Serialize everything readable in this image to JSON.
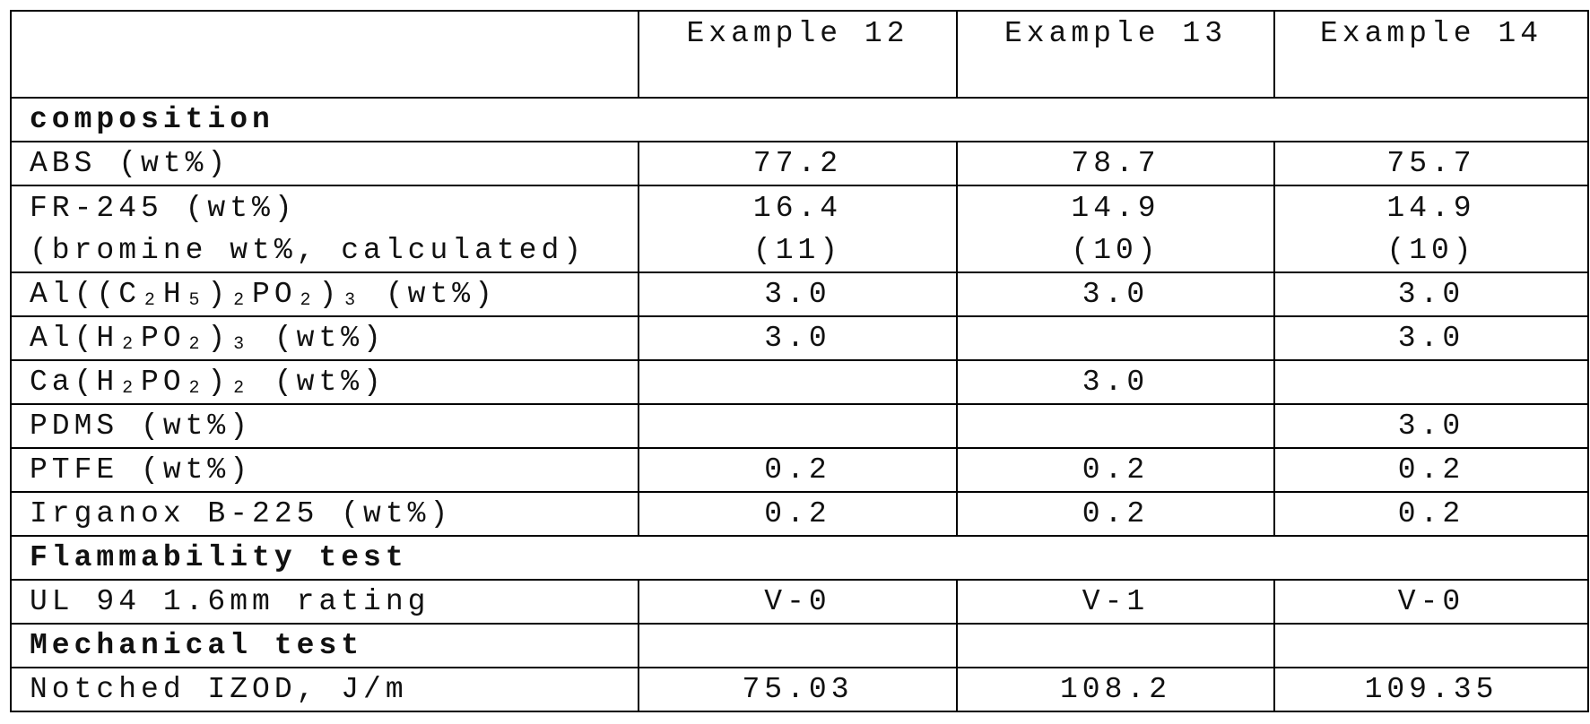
{
  "table": {
    "header": [
      "Example 12",
      "Example 13",
      "Example 14"
    ],
    "rows": [
      {
        "section": "composition"
      },
      {
        "label": [
          "ABS (wt%)"
        ],
        "cells": [
          [
            "77.2"
          ],
          [
            "78.7"
          ],
          [
            "75.7"
          ]
        ]
      },
      {
        "label": [
          "FR-245 (wt%)",
          "(bromine wt%, calculated)"
        ],
        "cells": [
          [
            "16.4",
            "(11)"
          ],
          [
            "14.9",
            "(10)"
          ],
          [
            "14.9",
            "(10)"
          ]
        ]
      },
      {
        "label": [
          "Al((C₂H₅)₂PO₂)₃ (wt%)"
        ],
        "cells": [
          [
            "3.0"
          ],
          [
            "3.0"
          ],
          [
            "3.0"
          ]
        ]
      },
      {
        "label": [
          "Al(H₂PO₂)₃ (wt%)"
        ],
        "cells": [
          [
            "3.0"
          ],
          null,
          [
            "3.0"
          ]
        ]
      },
      {
        "label": [
          "Ca(H₂PO₂)₂ (wt%)"
        ],
        "cells": [
          null,
          [
            "3.0"
          ],
          null
        ]
      },
      {
        "label": [
          "PDMS (wt%)"
        ],
        "cells": [
          null,
          null,
          [
            "3.0"
          ]
        ]
      },
      {
        "label": [
          "PTFE (wt%)"
        ],
        "cells": [
          [
            "0.2"
          ],
          [
            "0.2"
          ],
          [
            "0.2"
          ]
        ]
      },
      {
        "label": [
          "Irganox B-225 (wt%)"
        ],
        "cells": [
          [
            "0.2"
          ],
          [
            "0.2"
          ],
          [
            "0.2"
          ]
        ]
      },
      {
        "section": "Flammability test"
      },
      {
        "label": [
          "UL 94 1.6mm rating"
        ],
        "cells": [
          [
            "V-0"
          ],
          [
            "V-1"
          ],
          [
            "V-0"
          ]
        ]
      },
      {
        "section": "Mechanical test",
        "cells": [
          null,
          null,
          null
        ]
      },
      {
        "label": [
          "Notched IZOD, J/m"
        ],
        "cells": [
          [
            "75.03"
          ],
          [
            "108.2"
          ],
          [
            "109.35"
          ]
        ]
      }
    ]
  }
}
